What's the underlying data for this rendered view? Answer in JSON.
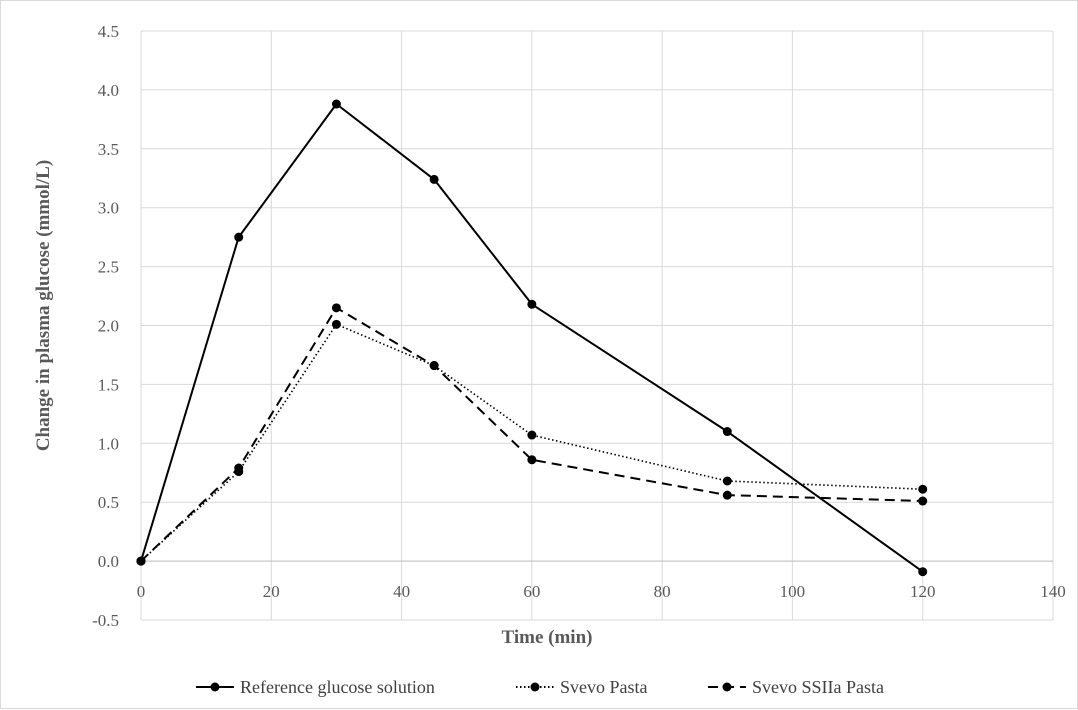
{
  "chart_data": {
    "type": "line",
    "title": "",
    "xlabel": "Time (min)",
    "ylabel": "Change in plasma glucose (mmol/L)",
    "xlim": [
      0,
      140
    ],
    "ylim": [
      -0.5,
      4.5
    ],
    "x_ticks": [
      "0",
      "20",
      "40",
      "60",
      "80",
      "100",
      "120",
      "140"
    ],
    "y_ticks": [
      "-0.5",
      "0.0",
      "0.5",
      "1.0",
      "1.5",
      "2.0",
      "2.5",
      "3.0",
      "3.5",
      "4.0",
      "4.5"
    ],
    "grid": true,
    "legend_position": "bottom",
    "series": [
      {
        "name": "Reference glucose solution",
        "line_style": "solid",
        "color": "#000000",
        "x": [
          0,
          15,
          30,
          45,
          60,
          90,
          120
        ],
        "values": [
          0.0,
          2.75,
          3.88,
          3.24,
          2.18,
          1.1,
          -0.09
        ]
      },
      {
        "name": "Svevo Pasta",
        "line_style": "dotted",
        "color": "#000000",
        "x": [
          0,
          15,
          30,
          45,
          60,
          90,
          120
        ],
        "values": [
          0.0,
          0.76,
          2.01,
          1.66,
          1.07,
          0.68,
          0.61
        ]
      },
      {
        "name": "Svevo SSIIa Pasta",
        "line_style": "dashed",
        "color": "#000000",
        "x": [
          0,
          15,
          30,
          45,
          60,
          90,
          120
        ],
        "values": [
          0.0,
          0.79,
          2.15,
          1.66,
          0.86,
          0.56,
          0.51
        ]
      }
    ]
  }
}
